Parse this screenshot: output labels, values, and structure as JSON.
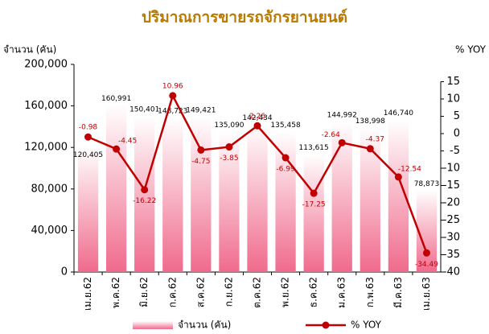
{
  "chart_data": {
    "type": "bar_line",
    "title": "ปริมาณการขายรถจักรยานยนต์",
    "y_label": "จำนวน (คัน)",
    "y2_label": "% YOY",
    "categories": [
      "เม.ย.62",
      "พ.ค.62",
      "มิ.ย.62",
      "ก.ค.62",
      "ส.ค.62",
      "ก.ย.62",
      "ต.ค.62",
      "พ.ย.62",
      "ธ.ค.62",
      "ม.ค.63",
      "ก.พ.63",
      "มี.ค.63",
      "เม.ย.63"
    ],
    "series": [
      {
        "name": "จำนวน (คัน)",
        "type": "bar",
        "color": "#f4a0b4",
        "values": [
          120405,
          160991,
          150401,
          148723,
          149421,
          135090,
          142434,
          135458,
          113615,
          144992,
          138998,
          146740,
          78873
        ],
        "value_labels": [
          "120,405",
          "160,991",
          "150,401",
          "148,723",
          "149,421",
          "135,090",
          "142,434",
          "135,458",
          "113,615",
          "144,992",
          "138,998",
          "146,740",
          "78,873"
        ]
      },
      {
        "name": "% YOY",
        "type": "line",
        "axis": "y2",
        "color": "#c00000",
        "values": [
          -0.98,
          -4.45,
          -16.22,
          10.96,
          -4.75,
          -3.85,
          2.26,
          -6.99,
          -17.25,
          -2.64,
          -4.37,
          -12.54,
          -34.49
        ]
      }
    ],
    "ylim": [
      0,
      200000
    ],
    "yticks": [
      0,
      {
        "value": 40000,
        "label": "40,000"
      },
      {
        "value": 80000,
        "label": "80,000"
      },
      {
        "value": 120000,
        "label": "120,000"
      },
      {
        "value": 160000,
        "label": "160,000"
      },
      {
        "value": 200000,
        "label": "200,000"
      }
    ],
    "y2lim": [
      -40,
      20
    ],
    "y2ticks": [
      -40,
      -35,
      -30,
      -25,
      -20,
      -15,
      -10,
      -5,
      0,
      5,
      10,
      15
    ],
    "legend": "bottom"
  }
}
